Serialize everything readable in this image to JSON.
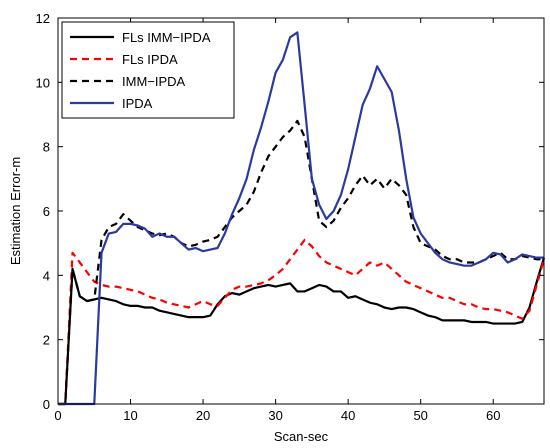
{
  "chart_data": {
    "type": "line",
    "xlabel": "Scan-sec",
    "ylabel": "Estimation Error-m",
    "xlim": [
      0,
      67
    ],
    "ylim": [
      0,
      12
    ],
    "xticks": [
      0,
      10,
      20,
      30,
      40,
      50,
      60
    ],
    "yticks": [
      0,
      2,
      4,
      6,
      8,
      10,
      12
    ],
    "grid": false,
    "legend_position": "top-left",
    "series": [
      {
        "name": "FLs IMM−IPDA",
        "color": "#000000",
        "dash": "solid",
        "x": [
          0,
          1,
          2,
          3,
          4,
          5,
          6,
          7,
          8,
          9,
          10,
          11,
          12,
          13,
          14,
          15,
          16,
          17,
          18,
          19,
          20,
          21,
          22,
          23,
          24,
          25,
          26,
          27,
          28,
          29,
          30,
          31,
          32,
          33,
          34,
          35,
          36,
          37,
          38,
          39,
          40,
          41,
          42,
          43,
          44,
          45,
          46,
          47,
          48,
          49,
          50,
          51,
          52,
          53,
          54,
          55,
          56,
          57,
          58,
          59,
          60,
          61,
          62,
          63,
          64,
          65,
          66,
          67
        ],
        "values": [
          0,
          0,
          4.2,
          3.35,
          3.2,
          3.25,
          3.3,
          3.25,
          3.2,
          3.1,
          3.05,
          3.05,
          3.0,
          3.0,
          2.9,
          2.85,
          2.8,
          2.75,
          2.7,
          2.7,
          2.7,
          2.75,
          3.1,
          3.35,
          3.45,
          3.4,
          3.5,
          3.6,
          3.65,
          3.7,
          3.65,
          3.7,
          3.75,
          3.5,
          3.5,
          3.6,
          3.7,
          3.65,
          3.5,
          3.5,
          3.3,
          3.35,
          3.25,
          3.15,
          3.1,
          3.0,
          2.95,
          3.0,
          3.0,
          2.95,
          2.85,
          2.75,
          2.7,
          2.6,
          2.6,
          2.6,
          2.6,
          2.55,
          2.55,
          2.55,
          2.5,
          2.5,
          2.5,
          2.5,
          2.55,
          3.0,
          3.8,
          4.55
        ]
      },
      {
        "name": "FLs IPDA",
        "color": "#ff0000",
        "dash": "dashed",
        "x": [
          0,
          1,
          2,
          3,
          4,
          5,
          6,
          7,
          8,
          9,
          10,
          11,
          12,
          13,
          14,
          15,
          16,
          17,
          18,
          19,
          20,
          21,
          22,
          23,
          24,
          25,
          26,
          27,
          28,
          29,
          30,
          31,
          32,
          33,
          34,
          35,
          36,
          37,
          38,
          39,
          40,
          41,
          42,
          43,
          44,
          45,
          46,
          47,
          48,
          49,
          50,
          51,
          52,
          53,
          54,
          55,
          56,
          57,
          58,
          59,
          60,
          61,
          62,
          63,
          64,
          65,
          66,
          67
        ],
        "values": [
          0,
          0,
          4.7,
          4.4,
          4.1,
          3.8,
          3.7,
          3.65,
          3.65,
          3.6,
          3.55,
          3.5,
          3.4,
          3.3,
          3.25,
          3.15,
          3.1,
          3.05,
          3.0,
          3.1,
          3.2,
          3.1,
          3.05,
          3.3,
          3.55,
          3.65,
          3.65,
          3.7,
          3.75,
          3.85,
          4.0,
          4.2,
          4.5,
          4.8,
          5.1,
          4.9,
          4.6,
          4.4,
          4.3,
          4.2,
          4.1,
          4.0,
          4.2,
          4.4,
          4.3,
          4.4,
          4.2,
          4.0,
          3.8,
          3.7,
          3.6,
          3.5,
          3.4,
          3.3,
          3.3,
          3.2,
          3.1,
          3.1,
          3.0,
          2.95,
          2.95,
          2.9,
          2.85,
          2.75,
          2.65,
          2.9,
          3.7,
          4.5
        ]
      },
      {
        "name": "IMM−IPDA",
        "color": "#000000",
        "dash": "dashed",
        "x": [
          0,
          1,
          2,
          3,
          4,
          5,
          6,
          7,
          8,
          9,
          10,
          11,
          12,
          13,
          14,
          15,
          16,
          17,
          18,
          19,
          20,
          21,
          22,
          23,
          24,
          25,
          26,
          27,
          28,
          29,
          30,
          31,
          32,
          33,
          34,
          35,
          36,
          37,
          38,
          39,
          40,
          41,
          42,
          43,
          44,
          45,
          46,
          47,
          48,
          49,
          50,
          51,
          52,
          53,
          54,
          55,
          56,
          57,
          58,
          59,
          60,
          61,
          62,
          63,
          64,
          65,
          66,
          67
        ],
        "values": [
          0,
          0,
          4.2,
          3.35,
          3.2,
          3.25,
          5.1,
          5.5,
          5.6,
          5.9,
          5.7,
          5.5,
          5.4,
          5.3,
          5.25,
          5.3,
          5.2,
          5.0,
          4.9,
          4.95,
          5.05,
          5.1,
          5.2,
          5.5,
          5.8,
          6.0,
          6.2,
          6.6,
          7.2,
          7.7,
          8.0,
          8.3,
          8.5,
          8.8,
          8.3,
          7.0,
          5.7,
          5.5,
          5.7,
          6.1,
          6.4,
          6.8,
          7.1,
          6.8,
          7.0,
          6.7,
          7.0,
          6.8,
          6.5,
          5.5,
          5.0,
          4.9,
          4.8,
          4.6,
          4.5,
          4.5,
          4.4,
          4.4,
          4.4,
          4.5,
          4.6,
          4.7,
          4.5,
          4.5,
          4.6,
          4.55,
          4.5,
          4.5
        ]
      },
      {
        "name": "IPDA",
        "color": "#2b3a9e",
        "dash": "solid",
        "x": [
          0,
          1,
          2,
          3,
          4,
          5,
          6,
          7,
          8,
          9,
          10,
          11,
          12,
          13,
          14,
          15,
          16,
          17,
          18,
          19,
          20,
          21,
          22,
          23,
          24,
          25,
          26,
          27,
          28,
          29,
          30,
          31,
          32,
          33,
          34,
          35,
          36,
          37,
          38,
          39,
          40,
          41,
          42,
          43,
          44,
          45,
          46,
          47,
          48,
          49,
          50,
          51,
          52,
          53,
          54,
          55,
          56,
          57,
          58,
          59,
          60,
          61,
          62,
          63,
          64,
          65,
          66,
          67
        ],
        "values": [
          0,
          0,
          0,
          0,
          0,
          0,
          4.7,
          5.3,
          5.35,
          5.6,
          5.6,
          5.55,
          5.45,
          5.2,
          5.3,
          5.2,
          5.2,
          5.0,
          4.8,
          4.85,
          4.75,
          4.8,
          4.85,
          5.3,
          5.9,
          6.4,
          7.0,
          7.9,
          8.6,
          9.4,
          10.3,
          10.7,
          11.4,
          11.55,
          9.3,
          7.0,
          6.2,
          5.75,
          6.0,
          6.5,
          7.3,
          8.3,
          9.3,
          9.8,
          10.5,
          10.1,
          9.7,
          8.5,
          7.0,
          5.8,
          5.3,
          5.0,
          4.7,
          4.5,
          4.4,
          4.35,
          4.3,
          4.3,
          4.4,
          4.5,
          4.7,
          4.65,
          4.4,
          4.5,
          4.65,
          4.6,
          4.55,
          4.55
        ]
      }
    ]
  }
}
